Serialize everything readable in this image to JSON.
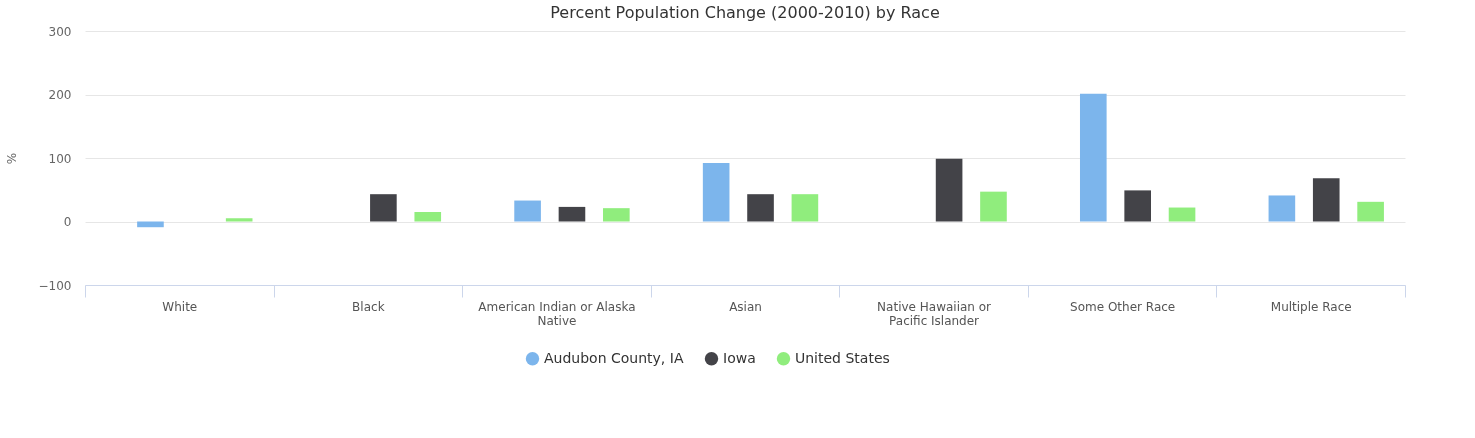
{
  "chart_data": {
    "type": "bar",
    "title": "Percent Population Change (2000-2010) by Race",
    "ylabel": "%",
    "categories": [
      "White",
      "Black",
      "American Indian or Alaska Native",
      "Asian",
      "Native Hawaiian or Pacific Islander",
      "Some Other Race",
      "Multiple Race"
    ],
    "series": [
      {
        "name": "Audubon County, IA",
        "color": "#7cb5ec",
        "values": [
          -9,
          0,
          33,
          92,
          0,
          201,
          41
        ]
      },
      {
        "name": "Iowa",
        "color": "#434348",
        "values": [
          null,
          43,
          23,
          43,
          99,
          49,
          68
        ]
      },
      {
        "name": "United States",
        "color": "#90ed7d",
        "values": [
          5,
          15,
          21,
          43,
          47,
          22,
          31
        ]
      }
    ],
    "ylim": [
      -100,
      300
    ],
    "yticks": [
      -100,
      0,
      100,
      200,
      300
    ],
    "grid": "y",
    "legend": "bottom"
  }
}
